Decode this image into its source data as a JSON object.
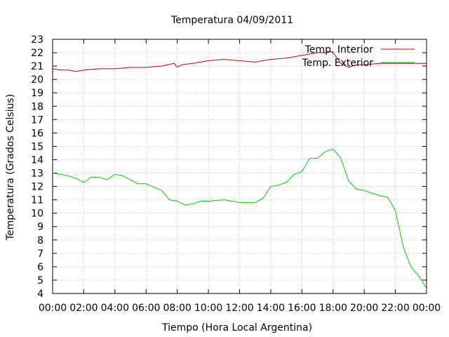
{
  "chart_data": {
    "type": "line",
    "title": "Temperatura 04/09/2011",
    "xlabel": "Tiempo (Hora Local Argentina)",
    "ylabel": "Temperatura (Grados Celsius)",
    "xlim": [
      0,
      24
    ],
    "ylim": [
      4,
      23
    ],
    "x_tick_labels": [
      "00:00",
      "02:00",
      "04:00",
      "06:00",
      "08:00",
      "10:00",
      "12:00",
      "14:00",
      "16:00",
      "18:00",
      "20:00",
      "22:00",
      "00:00"
    ],
    "y_tick_labels": [
      "4",
      "5",
      "6",
      "7",
      "8",
      "9",
      "10",
      "11",
      "12",
      "13",
      "14",
      "15",
      "16",
      "17",
      "18",
      "19",
      "20",
      "21",
      "22",
      "23"
    ],
    "grid": true,
    "legend_position": "top-right",
    "series": [
      {
        "name": "Temp. Interior",
        "color": "#cc0000",
        "x": [
          0,
          0.5,
          1,
          1.5,
          2,
          3,
          4,
          5,
          6,
          7,
          7.8,
          8,
          8.3,
          9,
          10,
          11,
          12,
          13,
          14,
          15,
          16,
          16.5,
          17,
          17.5,
          17.8,
          18,
          18.5,
          19,
          19.5,
          20,
          21,
          22,
          23,
          24
        ],
        "y": [
          20.8,
          20.7,
          20.7,
          20.6,
          20.7,
          20.8,
          20.8,
          20.9,
          20.9,
          21.0,
          21.2,
          20.9,
          21.1,
          21.2,
          21.4,
          21.5,
          21.4,
          21.3,
          21.5,
          21.6,
          21.8,
          21.9,
          22.0,
          22.0,
          22.1,
          22.0,
          21.2,
          20.9,
          21.1,
          21.1,
          21.2,
          21.2,
          21.2,
          21.2
        ]
      },
      {
        "name": "Temp. Exterior",
        "color": "#00cc00",
        "x": [
          0,
          0.5,
          1,
          1.5,
          2,
          2.5,
          3,
          3.5,
          4,
          4.5,
          5,
          5.5,
          6,
          7,
          7.5,
          8,
          8.5,
          9,
          9.5,
          10,
          11,
          12,
          13,
          13.5,
          14,
          14.5,
          15,
          15.5,
          16,
          16.5,
          17,
          17.5,
          18,
          18.5,
          19,
          19.5,
          20,
          20.5,
          21,
          21.5,
          22,
          22.5,
          23,
          23.5,
          24
        ],
        "y": [
          13.0,
          12.9,
          12.8,
          12.6,
          12.3,
          12.7,
          12.7,
          12.5,
          12.9,
          12.8,
          12.5,
          12.2,
          12.2,
          11.7,
          11.0,
          10.9,
          10.6,
          10.7,
          10.9,
          10.9,
          11.0,
          10.8,
          10.8,
          11.1,
          12.0,
          12.1,
          12.3,
          12.9,
          13.1,
          14.1,
          14.1,
          14.6,
          14.8,
          14.1,
          12.4,
          11.8,
          11.7,
          11.5,
          11.3,
          11.2,
          10.2,
          7.5,
          6.0,
          5.3,
          4.4
        ]
      }
    ]
  }
}
